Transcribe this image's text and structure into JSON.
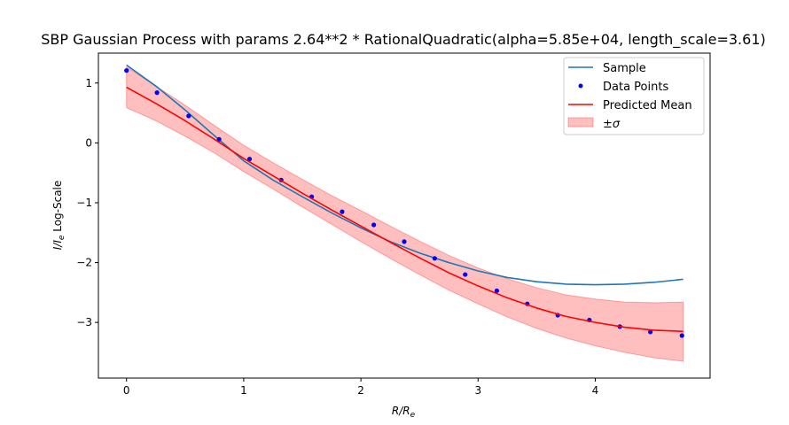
{
  "chart_data": {
    "type": "line",
    "title": "SBP Gaussian Process with params 2.64**2 * RationalQuadratic(alpha=5.85e+04, length_scale=3.61)",
    "xlabel_main": "R/R",
    "xlabel_sub": "e",
    "ylabel_main": "I/I",
    "ylabel_sub": "e",
    "ylabel_suffix": " Log-Scale",
    "xlim": [
      -0.24,
      4.98
    ],
    "ylim": [
      -3.93,
      1.5
    ],
    "xticks": [
      0,
      1,
      2,
      3,
      4
    ],
    "yticks": [
      -3,
      -2,
      -1,
      0,
      1
    ],
    "ytick_labels": [
      "−3",
      "−2",
      "−1",
      "0",
      "1"
    ],
    "legend_placement": "upper right",
    "legend": [
      {
        "label": "Sample",
        "kind": "line",
        "color": "#1f77b4"
      },
      {
        "label": "Data Points",
        "kind": "marker",
        "color": "#0000ff"
      },
      {
        "label": "Predicted Mean",
        "kind": "line",
        "color": "#ff0000"
      },
      {
        "label": "±σ",
        "kind": "patch",
        "color": "#ff0000"
      }
    ],
    "series": [
      {
        "name": "Sample",
        "color": "#1f77b4",
        "x": [
          0,
          0.25,
          0.5,
          0.75,
          1.0,
          1.25,
          1.5,
          1.75,
          2.0,
          2.25,
          2.5,
          2.75,
          3.0,
          3.25,
          3.5,
          3.75,
          4.0,
          4.25,
          4.5,
          4.75
        ],
        "y": [
          1.3,
          0.95,
          0.55,
          0.12,
          -0.3,
          -0.62,
          -0.9,
          -1.17,
          -1.42,
          -1.65,
          -1.84,
          -2.0,
          -2.14,
          -2.25,
          -2.32,
          -2.36,
          -2.37,
          -2.36,
          -2.33,
          -2.28
        ]
      },
      {
        "name": "Data Points",
        "color": "#0000ff",
        "x": [
          0,
          0.26,
          0.53,
          0.79,
          1.05,
          1.32,
          1.58,
          1.84,
          2.11,
          2.37,
          2.63,
          2.89,
          3.16,
          3.42,
          3.68,
          3.95,
          4.21,
          4.47,
          4.74
        ],
        "y": [
          1.21,
          0.84,
          0.45,
          0.06,
          -0.27,
          -0.62,
          -0.9,
          -1.15,
          -1.37,
          -1.65,
          -1.93,
          -2.2,
          -2.47,
          -2.69,
          -2.88,
          -2.96,
          -3.07,
          -3.16,
          -3.22
        ]
      },
      {
        "name": "Predicted Mean",
        "color": "#ff0000",
        "x": [
          0,
          0.25,
          0.5,
          0.75,
          1.0,
          1.25,
          1.5,
          1.75,
          2.0,
          2.25,
          2.5,
          2.75,
          3.0,
          3.25,
          3.5,
          3.75,
          4.0,
          4.25,
          4.5,
          4.75
        ],
        "y": [
          0.93,
          0.66,
          0.37,
          0.06,
          -0.26,
          -0.55,
          -0.84,
          -1.12,
          -1.39,
          -1.66,
          -1.92,
          -2.17,
          -2.39,
          -2.59,
          -2.76,
          -2.9,
          -3.0,
          -3.08,
          -3.13,
          -3.15
        ]
      }
    ],
    "band": {
      "name": "±σ",
      "color": "#ff0000",
      "x": [
        0,
        0.25,
        0.5,
        0.75,
        1.0,
        1.25,
        1.5,
        1.75,
        2.0,
        2.25,
        2.5,
        2.75,
        3.0,
        3.25,
        3.5,
        3.75,
        4.0,
        4.25,
        4.5,
        4.75
      ],
      "upper": [
        1.27,
        0.95,
        0.63,
        0.29,
        -0.04,
        -0.33,
        -0.61,
        -0.88,
        -1.13,
        -1.39,
        -1.64,
        -1.88,
        -2.09,
        -2.27,
        -2.42,
        -2.54,
        -2.61,
        -2.66,
        -2.67,
        -2.66
      ],
      "lower": [
        0.59,
        0.37,
        0.11,
        -0.17,
        -0.48,
        -0.77,
        -1.07,
        -1.36,
        -1.65,
        -1.93,
        -2.2,
        -2.46,
        -2.69,
        -2.91,
        -3.1,
        -3.26,
        -3.39,
        -3.5,
        -3.59,
        -3.65
      ]
    }
  }
}
